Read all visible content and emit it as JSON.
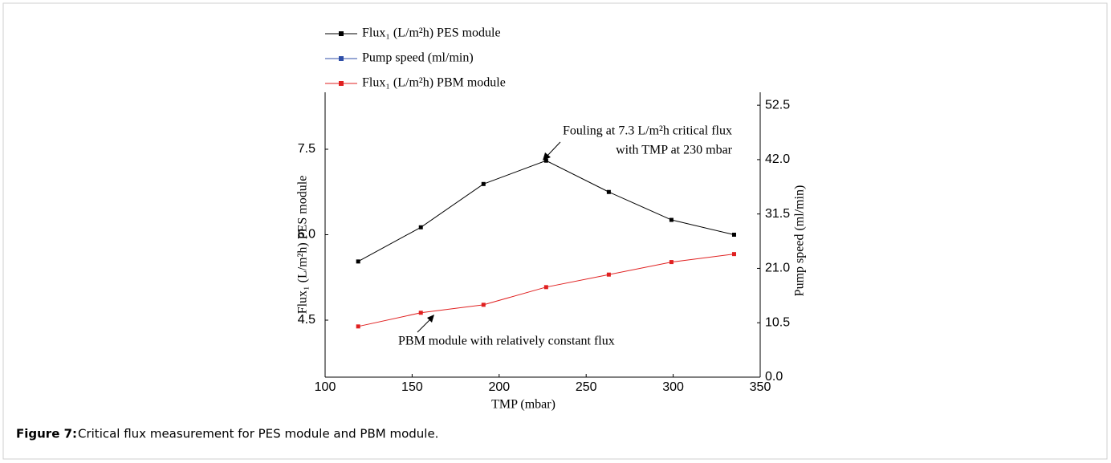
{
  "chart_data": {
    "type": "line",
    "x_label": "TMP (mbar)",
    "y_label": "Flux₁ (L/m²h) PES module",
    "y2_label": "Pump speed (ml/min)",
    "x": [
      119,
      155,
      191,
      227,
      263,
      299,
      335
    ],
    "series": [
      {
        "name": "Flux₁ (L/m²h) PES module",
        "color": "#000000",
        "values": [
          5.53,
          6.13,
          6.89,
          7.3,
          6.75,
          6.26,
          6.0
        ]
      },
      {
        "name": "Pump speed (ml/min)",
        "color": "#2f4fa8",
        "axis": "y2",
        "values": [
          null,
          null,
          null,
          null,
          null,
          null,
          null
        ]
      },
      {
        "name": "Flux₁ (L/m²h) PBM module",
        "color": "#e02020",
        "values": [
          4.39,
          4.63,
          4.77,
          5.08,
          5.3,
          5.52,
          5.66
        ]
      }
    ],
    "xlim": [
      100,
      350
    ],
    "xticks": [
      100,
      150,
      200,
      250,
      300,
      350
    ],
    "ylim": [
      3.5,
      8.5
    ],
    "yticks": [
      4.5,
      {
        "value": 6,
        "label": "6.0"
      },
      7.5
    ],
    "y2lim": [
      0,
      55
    ],
    "y2ticks": [
      {
        "value": 0,
        "label": "0.0"
      },
      10.5,
      {
        "value": 21,
        "label": "21.0"
      },
      31.5,
      {
        "value": 42,
        "label": "42.0"
      },
      52.5
    ],
    "annotations": [
      "Fouling at 7.3 L/m²h critical flux",
      "with TMP at 230 mbar",
      "PBM module with relatively constant flux"
    ],
    "caption": {
      "label": "Figure 7:",
      "text": "Critical flux measurement for PES module and PBM module."
    }
  }
}
